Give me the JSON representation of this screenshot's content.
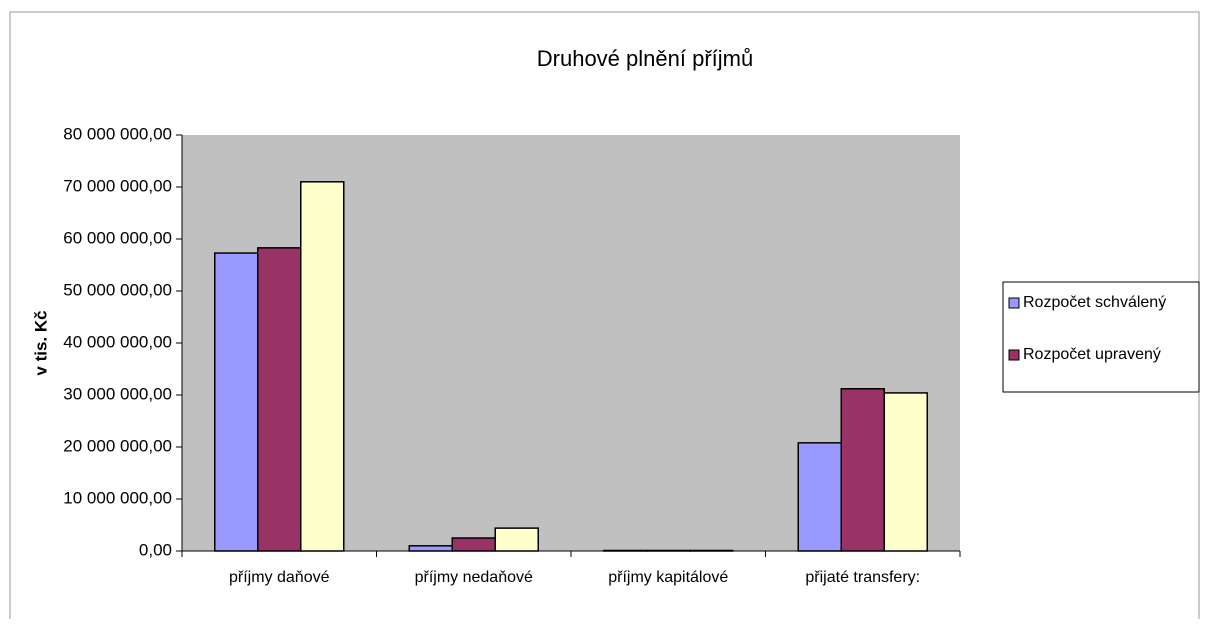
{
  "chart_data": {
    "type": "bar",
    "title": "Druhové plnění příjmů",
    "ylabel": "v tis. Kč",
    "categories": [
      "příjmy daňové",
      "příjmy nedaňové",
      "příjmy kapitálové",
      "přijaté transfery:"
    ],
    "series": [
      {
        "name": "Rozpočet schválený",
        "color": "#9999ff",
        "values": [
          57300000,
          1000000,
          100000,
          20800000
        ]
      },
      {
        "name": "Rozpočet upravený",
        "color": "#993366",
        "values": [
          58300000,
          2500000,
          100000,
          31200000
        ]
      },
      {
        "color": "#ffffcc",
        "values": [
          71000000,
          4400000,
          100000,
          30400000
        ]
      }
    ],
    "ylim": [
      0,
      80000000
    ],
    "yticks": [
      {
        "value": 0,
        "label": "0,00"
      },
      {
        "value": 10000000,
        "label": "10 000 000,00"
      },
      {
        "value": 20000000,
        "label": "20 000 000,00"
      },
      {
        "value": 30000000,
        "label": "30 000 000,00"
      },
      {
        "value": 40000000,
        "label": "40 000 000,00"
      },
      {
        "value": 50000000,
        "label": "50 000 000,00"
      },
      {
        "value": 60000000,
        "label": "60 000 000,00"
      },
      {
        "value": 70000000,
        "label": "70 000 000,00"
      },
      {
        "value": 80000000,
        "label": "80 000 000,00"
      }
    ],
    "plot_background": "#c0c0c0",
    "legend": "right"
  }
}
